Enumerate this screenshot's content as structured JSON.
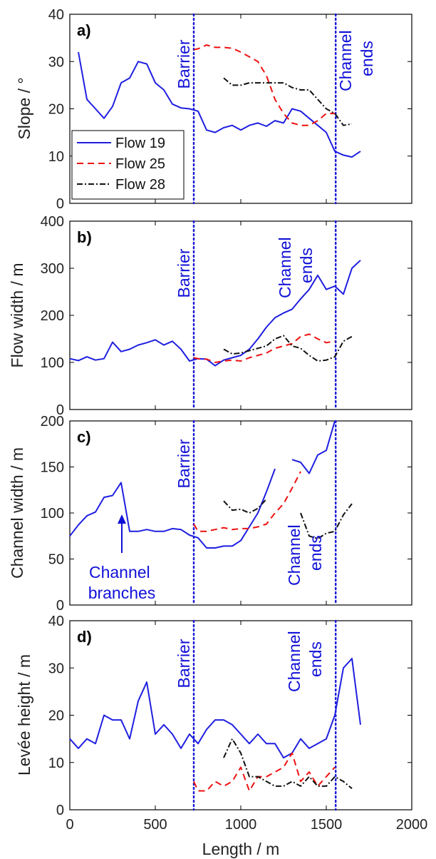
{
  "x_axis": {
    "label": "Length / m",
    "range": [
      0,
      2000
    ],
    "ticks": [
      0,
      500,
      1000,
      1500,
      2000
    ]
  },
  "markers": {
    "barrier_x": 725,
    "channel_end_x": 1555
  },
  "colors": {
    "flow19": "#1f1fe0",
    "flow25": "#ee1111",
    "flow28": "#111111",
    "marker_line": "#1a1ad8",
    "annotation": "#1010d8"
  },
  "legend": {
    "placement": "bottom-left of panel a",
    "entries": [
      "Flow 19",
      "Flow 25",
      "Flow 28"
    ]
  },
  "chart_data": [
    {
      "type": "line",
      "panel": "a)",
      "ylabel": "Slope / °",
      "ylim": [
        0,
        40
      ],
      "yticks": [
        0,
        10,
        20,
        30,
        40
      ],
      "annotations": [
        "Barrier",
        "Channel ends"
      ],
      "series": [
        {
          "name": "Flow 19",
          "style": "solid",
          "x": [
            50,
            100,
            150,
            200,
            250,
            300,
            350,
            400,
            450,
            500,
            550,
            600,
            650,
            700,
            750,
            800,
            850,
            900,
            950,
            1000,
            1050,
            1100,
            1150,
            1200,
            1250,
            1300,
            1350,
            1400,
            1450,
            1500,
            1550,
            1600,
            1650,
            1700
          ],
          "y": [
            32,
            22,
            20,
            18,
            20.5,
            25.5,
            26.5,
            30,
            29.5,
            25.5,
            24,
            21,
            20.2,
            20,
            19.5,
            15.5,
            15,
            16,
            16.5,
            15.5,
            16.5,
            17,
            16.3,
            17.5,
            17,
            20,
            19.5,
            18,
            16.5,
            15,
            11,
            10.2,
            9.8,
            11
          ]
        },
        {
          "name": "Flow 25",
          "style": "dashed",
          "x": [
            725,
            750,
            800,
            850,
            900,
            950,
            1000,
            1050,
            1100,
            1150,
            1200,
            1250,
            1300,
            1350,
            1400,
            1450,
            1500,
            1550
          ],
          "y": [
            32.5,
            32.7,
            33.5,
            33,
            33,
            32.8,
            32,
            31,
            30,
            27,
            22,
            19,
            17,
            16.5,
            16.5,
            17.5,
            19,
            19
          ]
        },
        {
          "name": "Flow 28",
          "style": "dashdot",
          "x": [
            900,
            950,
            1000,
            1050,
            1100,
            1150,
            1200,
            1250,
            1300,
            1350,
            1400,
            1450,
            1500,
            1550,
            1600,
            1650
          ],
          "y": [
            26.5,
            25,
            25,
            25.5,
            25.5,
            25.5,
            25.5,
            25.5,
            24.5,
            24,
            24,
            22,
            20,
            19,
            16.5,
            16.8
          ]
        }
      ]
    },
    {
      "type": "line",
      "panel": "b)",
      "ylabel": "Flow width / m",
      "ylim": [
        0,
        400
      ],
      "yticks": [
        0,
        100,
        200,
        300,
        400
      ],
      "annotations": [
        "Barrier",
        "Channel ends"
      ],
      "series": [
        {
          "name": "Flow 19",
          "style": "solid",
          "x": [
            0,
            50,
            100,
            150,
            200,
            250,
            300,
            350,
            400,
            450,
            500,
            550,
            600,
            650,
            700,
            750,
            800,
            850,
            900,
            950,
            1000,
            1050,
            1100,
            1150,
            1200,
            1250,
            1300,
            1350,
            1400,
            1450,
            1500,
            1550,
            1600,
            1650,
            1700
          ],
          "y": [
            108,
            104,
            112,
            105,
            108,
            143,
            123,
            128,
            137,
            142,
            148,
            137,
            145,
            128,
            103,
            108,
            107,
            93,
            105,
            110,
            115,
            128,
            150,
            175,
            195,
            205,
            213,
            235,
            255,
            285,
            255,
            262,
            245,
            300,
            317
          ]
        },
        {
          "name": "Flow 25",
          "style": "dashed",
          "x": [
            725,
            750,
            800,
            850,
            900,
            950,
            1000,
            1050,
            1100,
            1150,
            1200,
            1250,
            1300,
            1350,
            1400,
            1450,
            1500,
            1550
          ],
          "y": [
            110,
            108,
            107,
            100,
            103,
            105,
            103,
            110,
            115,
            120,
            130,
            135,
            140,
            155,
            160,
            150,
            142,
            145
          ]
        },
        {
          "name": "Flow 28",
          "style": "dashdot",
          "x": [
            900,
            950,
            1000,
            1050,
            1100,
            1150,
            1200,
            1250,
            1300,
            1350,
            1400,
            1450,
            1500,
            1550,
            1600,
            1650
          ],
          "y": [
            128,
            118,
            120,
            125,
            130,
            135,
            150,
            157,
            135,
            130,
            115,
            103,
            105,
            112,
            145,
            155
          ]
        }
      ]
    },
    {
      "type": "line",
      "panel": "c)",
      "ylabel": "Channel width / m",
      "ylim": [
        0,
        200
      ],
      "yticks": [
        0,
        50,
        100,
        150,
        200
      ],
      "annotations": [
        "Barrier",
        "Channel ends",
        "Channel branches"
      ],
      "series": [
        {
          "name": "Flow 19",
          "style": "solid",
          "x": [
            0,
            50,
            100,
            150,
            200,
            250,
            300,
            350,
            400,
            450,
            500,
            550,
            600,
            650,
            700,
            750,
            800,
            850,
            900,
            950,
            1000,
            1050,
            1100,
            1150,
            1200
          ],
          "y": [
            75,
            87,
            97,
            101,
            117,
            119,
            133,
            80,
            80,
            82,
            80,
            80,
            83,
            82,
            76,
            73,
            62,
            62,
            64,
            64,
            70,
            85,
            100,
            123,
            148
          ]
        },
        {
          "name": "Flow 19 (after break)",
          "style": "solid",
          "x": [
            1300,
            1350,
            1400,
            1450,
            1500,
            1550
          ],
          "y": [
            158,
            155,
            143,
            163,
            168,
            200
          ]
        },
        {
          "name": "Flow 25",
          "style": "dashed",
          "x": [
            725,
            750,
            800,
            850,
            900,
            950,
            1000,
            1050,
            1100,
            1150,
            1200,
            1250,
            1300,
            1350
          ],
          "y": [
            88,
            80,
            80,
            82,
            84,
            82,
            83,
            83,
            85,
            88,
            100,
            110,
            127,
            145
          ]
        },
        {
          "name": "Flow 28",
          "style": "dashdot",
          "x": [
            900,
            950,
            1000,
            1050,
            1100,
            1150
          ],
          "y": [
            113,
            103,
            104,
            100,
            105,
            115
          ]
        },
        {
          "name": "Flow 28 (after break)",
          "style": "dashdot",
          "x": [
            1350,
            1400,
            1450,
            1500,
            1550,
            1600,
            1650
          ],
          "y": [
            100,
            75,
            72,
            78,
            80,
            98,
            110
          ]
        }
      ]
    },
    {
      "type": "line",
      "panel": "d)",
      "ylabel": "Levée height / m",
      "ylim": [
        0,
        40
      ],
      "yticks": [
        0,
        10,
        20,
        30,
        40
      ],
      "xlabel": "Length / m",
      "annotations": [
        "Barrier",
        "Channel ends"
      ],
      "series": [
        {
          "name": "Flow 19",
          "style": "solid",
          "x": [
            0,
            50,
            100,
            150,
            200,
            250,
            300,
            350,
            400,
            450,
            500,
            550,
            600,
            650,
            700,
            750,
            800,
            850,
            900,
            950,
            1000,
            1050,
            1100,
            1150,
            1200,
            1250,
            1300,
            1350,
            1400,
            1450,
            1500,
            1550,
            1600,
            1650,
            1700
          ],
          "y": [
            15,
            13,
            15,
            14,
            20,
            19,
            19,
            15,
            23,
            27,
            16,
            18,
            16,
            13,
            16,
            14,
            17,
            19,
            19,
            18,
            16,
            14,
            16,
            14,
            14,
            11,
            12,
            15,
            13,
            14,
            15,
            20,
            30,
            32,
            18
          ]
        },
        {
          "name": "Flow 25",
          "style": "dashed",
          "x": [
            725,
            750,
            800,
            850,
            900,
            950,
            1000,
            1050,
            1100,
            1150,
            1200,
            1250,
            1300,
            1350,
            1400,
            1450,
            1500,
            1550
          ],
          "y": [
            6,
            4,
            4,
            6,
            5,
            6,
            9,
            4,
            7,
            7,
            8,
            9,
            12,
            6,
            8,
            5,
            7,
            9
          ]
        },
        {
          "name": "Flow 28",
          "style": "dashdot",
          "x": [
            900,
            950,
            1000,
            1050,
            1100,
            1150,
            1200,
            1250,
            1300,
            1350,
            1400,
            1450,
            1500,
            1550,
            1600,
            1650
          ],
          "y": [
            11,
            15,
            12,
            7,
            7,
            6,
            5,
            5,
            6,
            5,
            7,
            5,
            5,
            7,
            6,
            4.5
          ]
        }
      ]
    }
  ]
}
